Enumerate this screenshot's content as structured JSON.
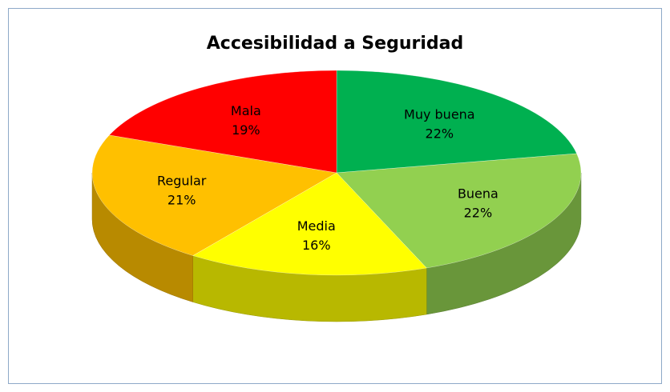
{
  "chart_data": {
    "type": "pie",
    "title": "Accesibilidad a Seguridad",
    "categories": [
      "Muy buena",
      "Buena",
      "Media",
      "Regular",
      "Mala"
    ],
    "values": [
      22,
      22,
      16,
      21,
      19
    ],
    "value_labels": [
      "22%",
      "22%",
      "16%",
      "21%",
      "19%"
    ],
    "colors": [
      "#00b050",
      "#92d050",
      "#ffff00",
      "#ffc000",
      "#ff0000"
    ]
  }
}
